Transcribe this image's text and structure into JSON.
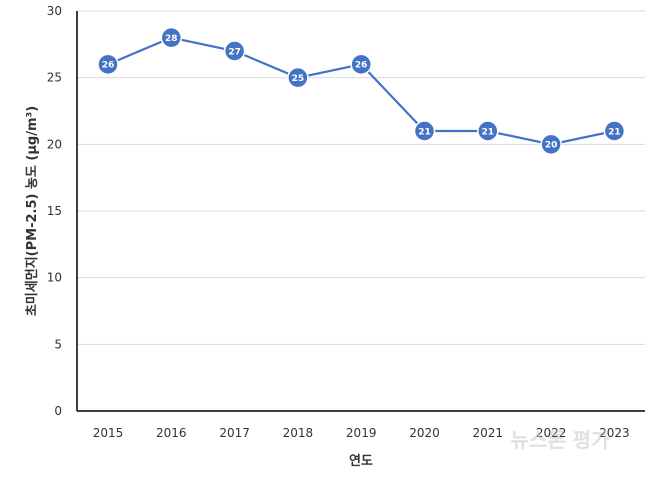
{
  "chart_data": {
    "type": "line",
    "x": [
      "2015",
      "2016",
      "2017",
      "2018",
      "2019",
      "2020",
      "2021",
      "2022",
      "2023"
    ],
    "series": [
      {
        "values": [
          26,
          28,
          27,
          25,
          26,
          21,
          21,
          20,
          21
        ]
      }
    ],
    "xlabel": "연도",
    "ylabel": "초미세먼지(PM-2.5) 농도 (μg/m³)",
    "ylim": [
      0,
      30
    ],
    "yticks": [
      0,
      5,
      10,
      15,
      20,
      25,
      30
    ],
    "grid": true,
    "legend": "none",
    "data_labels": true,
    "colors": {
      "line": "#4472C4",
      "marker": "#4472C4",
      "marker_edge": "#ffffff",
      "grid": "#d9d9d9",
      "axis": "#000000"
    }
  },
  "watermark": {
    "text": "뉴스톤 평가"
  }
}
